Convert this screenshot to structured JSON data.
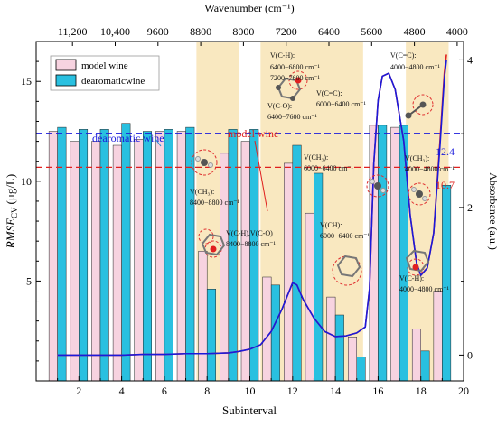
{
  "chart_data": {
    "type": "bar",
    "top_axis_label": "Wavenumber (cm⁻¹)",
    "top_ticks": [
      "11,200",
      "10,400",
      "9600",
      "8800",
      "8000",
      "7200",
      "6400",
      "5600",
      "4800",
      "4000"
    ],
    "xlabel": "Subinterval",
    "ylabel_main": "RMSE",
    "ylabel_sub": "CV",
    "ylabel_unit": "(μg/L)",
    "y2label": "Absorbance (a.u.)",
    "xlim": [
      0,
      20
    ],
    "ylim": [
      0,
      17
    ],
    "y2lim": [
      -0.35,
      4.25
    ],
    "x_ticks": [
      2,
      4,
      6,
      8,
      10,
      12,
      14,
      16,
      18,
      20
    ],
    "y_ticks": [
      5,
      10,
      15
    ],
    "y2_ticks": [
      0,
      2,
      4
    ],
    "categories": [
      1,
      2,
      3,
      4,
      5,
      6,
      7,
      8,
      9,
      10,
      11,
      12,
      13,
      14,
      15,
      16,
      17,
      18,
      19
    ],
    "series": [
      {
        "name": "model wine",
        "color": "#f7d3e0",
        "values": [
          12.5,
          12.0,
          12.0,
          11.8,
          12.1,
          12.5,
          12.5,
          6.5,
          11.4,
          12.0,
          5.2,
          10.9,
          8.4,
          4.2,
          2.2,
          12.8,
          12.7,
          2.6,
          4.5
        ]
      },
      {
        "name": "dearomaticwine",
        "color": "#29c0e0",
        "values": [
          12.7,
          12.6,
          12.6,
          12.9,
          12.5,
          12.6,
          12.7,
          4.6,
          12.6,
          12.6,
          4.8,
          11.8,
          10.4,
          3.3,
          1.2,
          12.8,
          12.8,
          1.5,
          9.8
        ]
      }
    ],
    "reference_lines": [
      {
        "label": "dearomatic wine",
        "value": 12.4,
        "value_label": "12.4",
        "color": "#1a1adb"
      },
      {
        "label": "model wine",
        "value": 10.7,
        "value_label": "10.7",
        "color": "#e0201e"
      }
    ],
    "highlight_regions": [
      [
        7.5,
        9.5
      ],
      [
        10.5,
        15.3
      ],
      [
        17.3,
        19.3
      ]
    ],
    "spectrum": {
      "name": "Absorbance",
      "colors": [
        "#e0201e",
        "#1a1adb"
      ],
      "x": [
        1,
        2,
        3,
        4,
        5,
        6,
        7,
        8,
        9,
        9.5,
        10,
        10.5,
        11,
        11.5,
        12,
        12.2,
        12.5,
        13,
        13.5,
        14,
        14.5,
        15,
        15.4,
        15.6,
        15.8,
        16,
        16.2,
        16.5,
        16.8,
        17.2,
        17.5,
        17.8,
        18,
        18.3,
        18.6,
        18.9,
        19.1,
        19.2
      ],
      "y": [
        0,
        0,
        0,
        0,
        0.01,
        0.01,
        0.02,
        0.02,
        0.03,
        0.05,
        0.08,
        0.14,
        0.32,
        0.62,
        0.98,
        0.95,
        0.75,
        0.5,
        0.32,
        0.25,
        0.26,
        0.3,
        0.38,
        0.9,
        2.6,
        3.45,
        3.78,
        3.82,
        3.6,
        2.9,
        1.9,
        1.25,
        1.08,
        1.18,
        1.65,
        2.85,
        3.75,
        4.0
      ]
    },
    "annotations": [
      "V(C-H):",
      "6400−6800 cm⁻¹",
      "7200−7600 cm⁻¹",
      "V(C-O):",
      "6400−7600 cm⁻¹",
      "V(C=C):",
      "6000−6400 cm⁻¹",
      "V(C=C):",
      "4000−4800 cm⁻¹",
      "V(CH₃):",
      "8400−8800 cm⁻¹",
      "V(CH₃):",
      "6000−6400 cm⁻¹",
      "V(CH₃):",
      "4000−4800 cm⁻¹",
      "V(C-H),V(C-O)",
      "8400−8800 cm⁻¹",
      "V(CH):",
      "6000−6400 cm⁻¹",
      "V(C-H):",
      "4000−4800 cm⁻¹"
    ]
  }
}
